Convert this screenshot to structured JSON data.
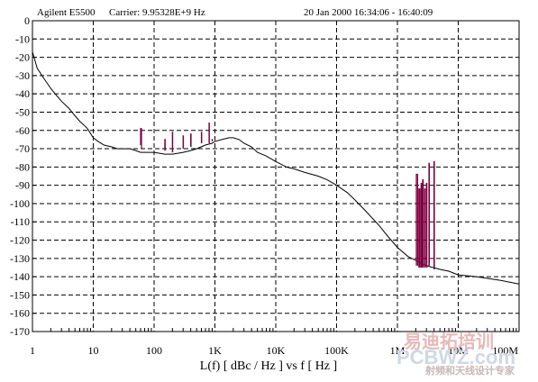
{
  "header": {
    "instrument": "Agilent E5500",
    "carrier": "Carrier: 9.95328E+9 Hz",
    "datetime": "20 Jan 2000  16:34:06 - 16:40:09"
  },
  "watermark": {
    "logo_big": "PCBWZ.com",
    "logo_cn": "易迪拓培训",
    "logo_small": "射频和天线设计专家",
    "corner_tick": "100M"
  },
  "colors": {
    "main_trace": "#000000",
    "spur_trace": "#800040",
    "grid": "#000000",
    "background": "#ffffff"
  },
  "chart_data": {
    "type": "line",
    "title": "",
    "xlabel": "L(f)  [ dBc / Hz ]  vs  f  [ Hz ]",
    "ylabel": "",
    "x_scale": "log",
    "xlim": [
      1,
      100000000
    ],
    "ylim": [
      -170,
      0
    ],
    "grid": true,
    "x_ticks": [
      {
        "value": 1,
        "label": "1"
      },
      {
        "value": 10,
        "label": "10"
      },
      {
        "value": 100,
        "label": "100"
      },
      {
        "value": 1000,
        "label": "1K"
      },
      {
        "value": 10000,
        "label": "10K"
      },
      {
        "value": 100000,
        "label": "100K"
      },
      {
        "value": 1000000,
        "label": "1M"
      },
      {
        "value": 10000000,
        "label": "10M"
      },
      {
        "value": 100000000,
        "label": "100M"
      }
    ],
    "y_ticks": [
      0,
      -10,
      -20,
      -30,
      -40,
      -50,
      -60,
      -70,
      -80,
      -90,
      -100,
      -110,
      -120,
      -130,
      -140,
      -150,
      -160,
      -170
    ],
    "series": [
      {
        "role": "phase-noise",
        "x": [
          1,
          1.2,
          1.5,
          2,
          2.5,
          3,
          4,
          5,
          6,
          7,
          8,
          10,
          12,
          15,
          20,
          25,
          30,
          40,
          50,
          60,
          80,
          100,
          150,
          200,
          300,
          400,
          500,
          700,
          900,
          1000,
          1300,
          1700,
          2000,
          2500,
          3000,
          4000,
          5000,
          7000,
          10000,
          15000,
          20000,
          30000,
          50000,
          70000,
          100000,
          150000,
          200000,
          300000,
          500000,
          700000,
          1000000,
          1500000,
          2000000,
          3000000,
          5000000,
          7000000,
          10000000,
          20000000,
          50000000,
          100000000
        ],
        "y": [
          -17,
          -26,
          -31,
          -37,
          -41,
          -44,
          -48,
          -52,
          -55,
          -57,
          -59,
          -64,
          -66,
          -68,
          -69,
          -70,
          -70,
          -70,
          -71,
          -72,
          -72,
          -72,
          -73,
          -73,
          -72,
          -71,
          -70,
          -68,
          -67,
          -66,
          -65,
          -64,
          -64,
          -65,
          -67,
          -69,
          -72,
          -74,
          -77,
          -80,
          -81,
          -83,
          -85,
          -87,
          -90,
          -94,
          -98,
          -104,
          -112,
          -118,
          -124,
          -129,
          -131,
          -134,
          -136,
          -137,
          -139,
          -140,
          -142,
          -144
        ]
      },
      {
        "role": "spurs",
        "segments": [
          {
            "x": [
              60,
              60,
              62,
              62
            ],
            "y": [
              -68,
              -59,
              -59,
              -70
            ]
          },
          {
            "x": [
              150,
              150,
              152,
              152
            ],
            "y": [
              -71,
              -65,
              -65,
              -71
            ]
          },
          {
            "x": [
              200,
              200,
              202,
              202
            ],
            "y": [
              -72,
              -61,
              -61,
              -72
            ]
          },
          {
            "x": [
              300,
              300,
              303,
              303
            ],
            "y": [
              -70,
              -63,
              -63,
              -70
            ]
          },
          {
            "x": [
              400,
              400,
              405,
              405
            ],
            "y": [
              -69,
              -62,
              -62,
              -69
            ]
          },
          {
            "x": [
              600,
              600,
              606,
              606
            ],
            "y": [
              -67,
              -61,
              -61,
              -67
            ]
          },
          {
            "x": [
              800,
              800,
              808,
              808
            ],
            "y": [
              -67,
              -56,
              -56,
              -67
            ]
          },
          {
            "x": [
              900,
              900,
              909,
              909
            ],
            "y": [
              -66,
              -65,
              -65,
              -66
            ]
          },
          {
            "x": [
              2050000,
              2050000,
              2150000,
              2150000
            ],
            "y": [
              -134,
              -84,
              -84,
              -134
            ]
          },
          {
            "x": [
              2250000,
              2250000,
              2350000,
              2350000
            ],
            "y": [
              -135,
              -92,
              -92,
              -135
            ]
          },
          {
            "x": [
              2450000,
              2450000,
              2500000,
              2500000
            ],
            "y": [
              -135,
              -89,
              -89,
              -135
            ]
          },
          {
            "x": [
              2600000,
              2600000,
              2650000,
              2650000
            ],
            "y": [
              -135,
              -87,
              -87,
              -135
            ]
          },
          {
            "x": [
              2800000,
              2800000,
              2850000,
              2850000
            ],
            "y": [
              -135,
              -92,
              -92,
              -135
            ]
          },
          {
            "x": [
              3000000,
              3000000,
              3050000,
              3050000
            ],
            "y": [
              -135,
              -89,
              -89,
              -135
            ]
          },
          {
            "x": [
              3300000,
              3300000,
              3350000,
              3350000
            ],
            "y": [
              -134,
              -78,
              -78,
              -134
            ]
          },
          {
            "x": [
              4000000,
              4000000,
              4050000,
              4050000
            ],
            "y": [
              -136,
              -77,
              -77,
              -136
            ]
          }
        ]
      }
    ]
  }
}
